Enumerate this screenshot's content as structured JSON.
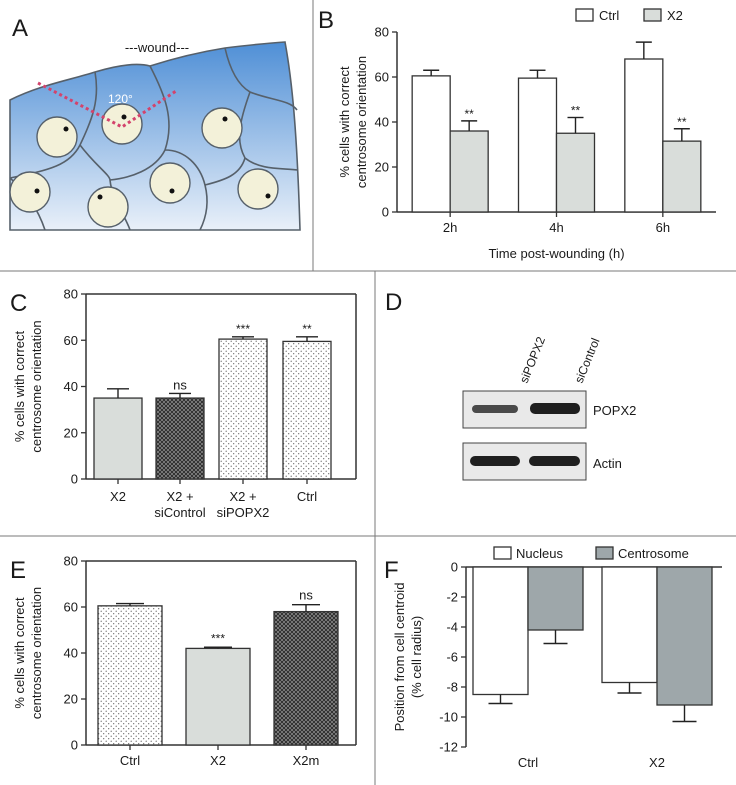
{
  "panel_letters": [
    "A",
    "B",
    "C",
    "D",
    "E",
    "F"
  ],
  "colors": {
    "grey_bar": "#d9ddda",
    "dark_grey_bar": "#9ea7aa",
    "white_bar": "#ffffff",
    "axis": "#333333",
    "wound_top": "#4f8fd6",
    "wound_bottom": "#e8eff8",
    "nucleus": "#f3f1d9",
    "angle_line": "#d3436c"
  },
  "panel_a": {
    "wound_label": "---wound---",
    "angle_label": "120°"
  },
  "panel_d": {
    "lanes": [
      "siPOPX2",
      "siControl"
    ],
    "bands": [
      "POPX2",
      "Actin"
    ]
  },
  "chart_data": [
    {
      "id": "B",
      "type": "bar",
      "categories": [
        "2h",
        "4h",
        "6h"
      ],
      "series": [
        {
          "name": "Ctrl",
          "values": [
            60.5,
            59.5,
            68
          ],
          "errors": [
            2.5,
            3.5,
            7.5
          ],
          "sig": [
            "",
            "",
            ""
          ]
        },
        {
          "name": "X2",
          "values": [
            36,
            35,
            31.5
          ],
          "errors": [
            4.5,
            7,
            5.5
          ],
          "sig": [
            "**",
            "**",
            "**"
          ]
        }
      ],
      "ylabel": "% cells with correct centrosome orientation",
      "xlabel": "Time post-wounding (h)",
      "ylim": [
        0,
        80
      ],
      "yticks": [
        0,
        20,
        40,
        60,
        80
      ],
      "legend": "top"
    },
    {
      "id": "C",
      "type": "bar",
      "categories": [
        "X2",
        "X2 + siControl",
        "X2 + siPOPX2",
        "Ctrl"
      ],
      "values": [
        35,
        35,
        60.5,
        59.5
      ],
      "errors": [
        4,
        2,
        1,
        2
      ],
      "sig": [
        "",
        "ns",
        "***",
        "**"
      ],
      "ylabel": "% cells with correct centrosome orientation",
      "ylim": [
        0,
        80
      ],
      "yticks": [
        0,
        20,
        40,
        60,
        80
      ]
    },
    {
      "id": "E",
      "type": "bar",
      "categories": [
        "Ctrl",
        "X2",
        "X2m"
      ],
      "values": [
        60.5,
        42,
        58
      ],
      "errors": [
        1,
        0.5,
        3
      ],
      "sig": [
        "",
        "***",
        "ns"
      ],
      "ylabel": "% cells with correct centrosome orientation",
      "ylim": [
        0,
        80
      ],
      "yticks": [
        0,
        20,
        40,
        60,
        80
      ]
    },
    {
      "id": "F",
      "type": "bar",
      "categories": [
        "Ctrl",
        "X2"
      ],
      "series": [
        {
          "name": "Nucleus",
          "values": [
            -8.5,
            -7.7
          ],
          "errors": [
            0.6,
            0.7
          ]
        },
        {
          "name": "Centrosome",
          "values": [
            -4.2,
            -9.2
          ],
          "errors": [
            0.9,
            1.1
          ]
        }
      ],
      "ylabel": "Position from cell centroid (% cell radius)",
      "ylim": [
        -12,
        0
      ],
      "yticks": [
        0,
        -2,
        -4,
        -6,
        -8,
        -10,
        -12
      ],
      "legend": "top"
    }
  ]
}
